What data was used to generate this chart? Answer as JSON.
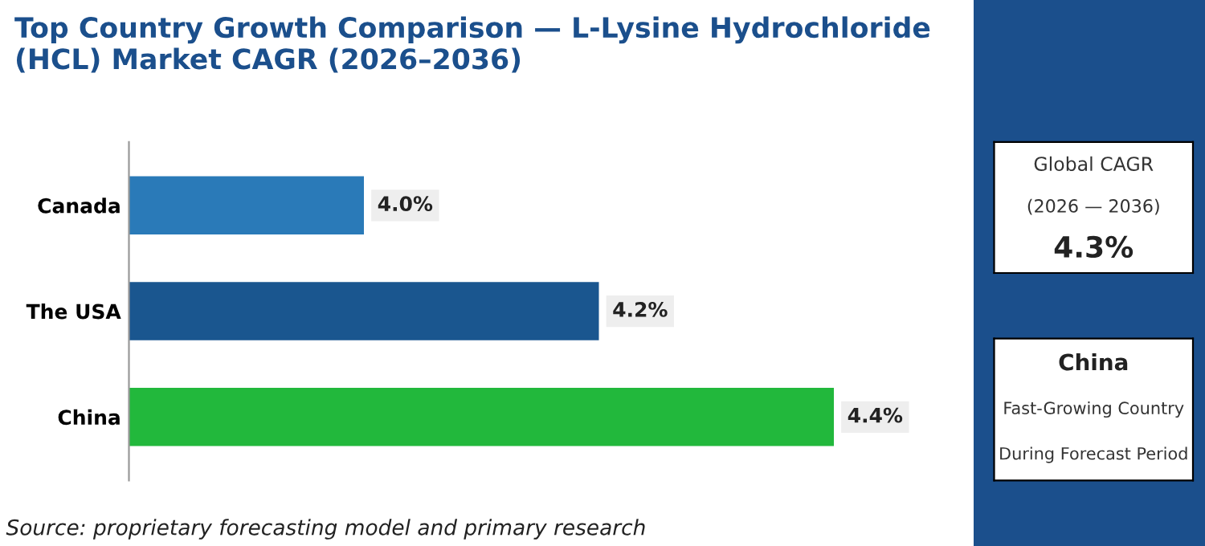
{
  "chart_data": [
    {
      "type": "bar",
      "orientation": "horizontal",
      "title": "Top Country Growth Comparison — L-Lysine Hydrochloride (HCL) Market CAGR (2026–2036)",
      "categories": [
        "Canada",
        "The USA",
        "China"
      ],
      "values": [
        4.0,
        4.2,
        4.4
      ],
      "colors": [
        "#2a7ab8",
        "#1a568f",
        "#22b83c"
      ],
      "xlim": [
        3.8,
        4.4
      ],
      "tick_labels": "y",
      "grid": false,
      "data_labels": true,
      "value_labels": [
        "4.0%",
        "4.2%",
        "4.4%"
      ],
      "annotations": [
        "Source: proprietary forecasting model and primary research"
      ]
    },
    {
      "type": "other",
      "title": "Global CAGR",
      "subtitle": "(2026 — 2036)",
      "annotations": [
        "4.3%"
      ]
    },
    {
      "type": "other",
      "title": "China",
      "annotations": [
        "Fast-Growing Country",
        "During Forecast Period"
      ]
    }
  ]
}
